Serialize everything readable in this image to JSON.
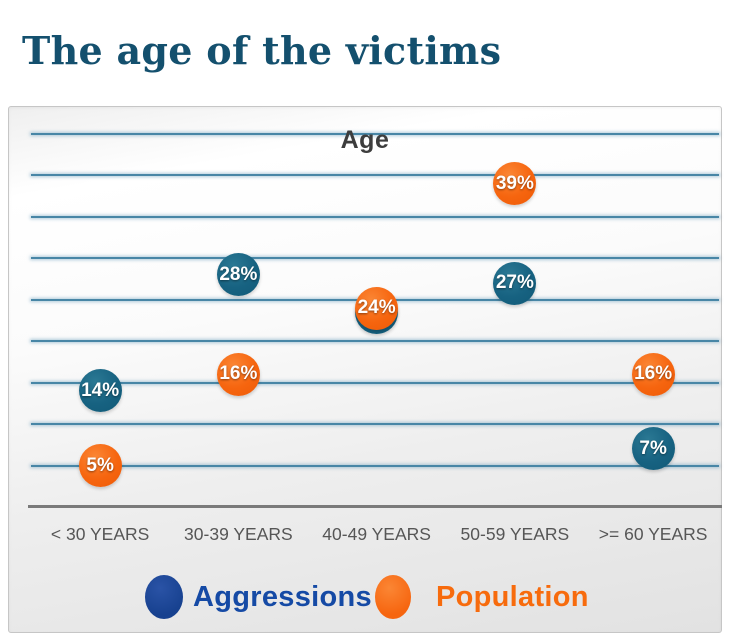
{
  "page": {
    "title": "The age of the victims"
  },
  "chart_data": {
    "type": "scatter",
    "subtype": "bubble",
    "title": "Age",
    "categories": [
      "< 30 YEARS",
      "30-39 YEARS",
      "40-49 YEARS",
      "50-59 YEARS",
      ">= 60 YEARS"
    ],
    "series": [
      {
        "name": "Aggressions",
        "color": "#17627f",
        "values": [
          14,
          28,
          24,
          27,
          7
        ],
        "labels": [
          "14%",
          "28%",
          "24%",
          "27%",
          "7%"
        ]
      },
      {
        "name": "Population",
        "color": "#f6650f",
        "values": [
          5,
          16,
          24,
          39,
          16
        ],
        "labels": [
          "5%",
          "16%",
          "24%",
          "39%",
          "16%"
        ]
      }
    ],
    "ylim": [
      0,
      45
    ],
    "y_gridline_step": 5,
    "grid": "horizontal",
    "gridline_color": "#4886a6",
    "axis_line_color": "#7a7a7a",
    "legend_position": "bottom",
    "legend": {
      "items": [
        {
          "label": "Aggressions",
          "marker_color": "#17418f",
          "label_color": "#154aa5"
        },
        {
          "label": "Population",
          "marker_color": "#f6650f",
          "label_color": "#f76b0d"
        }
      ]
    }
  }
}
